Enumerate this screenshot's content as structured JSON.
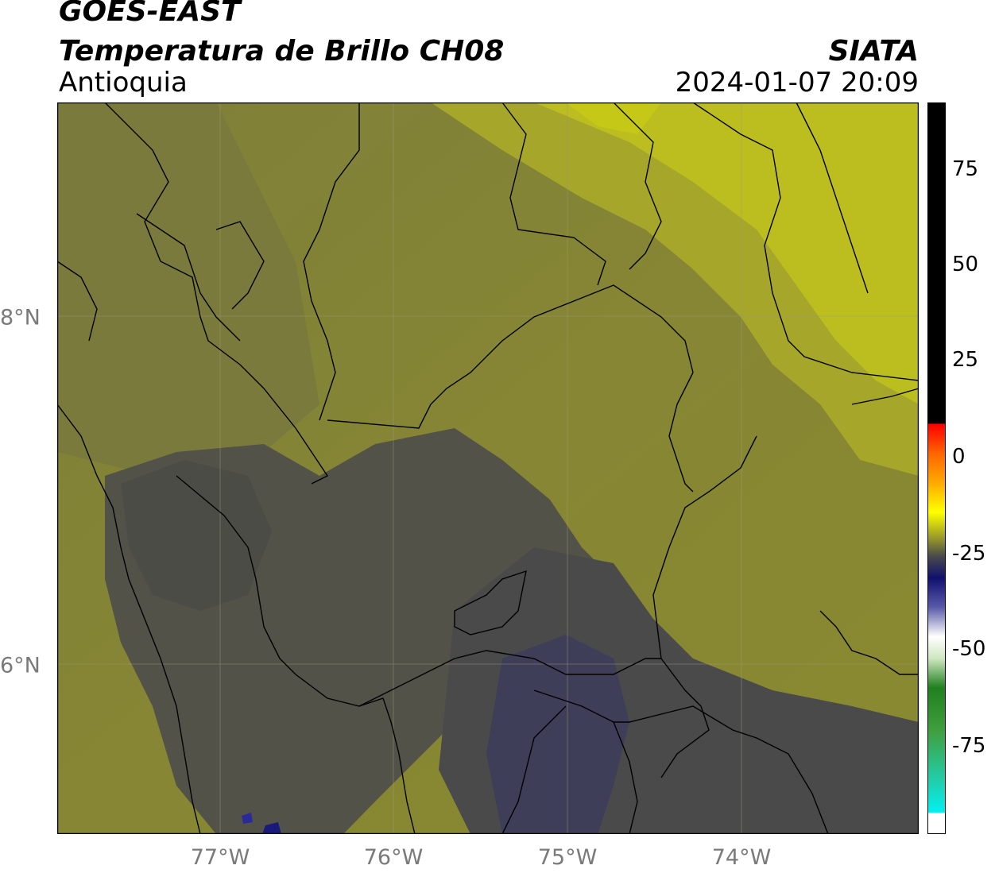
{
  "header": {
    "satellite": "GOES-EAST",
    "product": "Temperatura de Brillo CH08",
    "region": "Antioquia",
    "source": "SIATA",
    "datetime": "2024-01-07 20:09"
  },
  "axes": {
    "lon_labels": [
      "77°W",
      "76°W",
      "75°W",
      "74°W"
    ],
    "lat_labels": [
      "8°N",
      "6°N"
    ]
  },
  "colorbar": {
    "ticks": [
      "75",
      "50",
      "25",
      "0",
      "-25",
      "-50",
      "-75"
    ]
  },
  "colors": {
    "warm_olive": "#878734",
    "dry_yellow": "#c0c21c",
    "cold_gray": "#4a4a4a",
    "coldest_blue": "#3c3c58"
  }
}
